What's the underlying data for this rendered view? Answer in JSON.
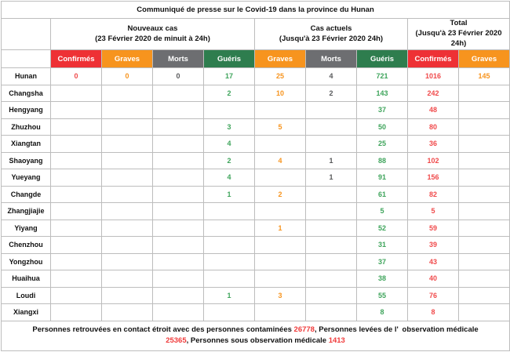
{
  "title": "Communiqué de presse sur le Covid-19 dans la province du Hunan",
  "colors": {
    "header_red": "#ee3135",
    "header_orange": "#f7941e",
    "header_gray": "#6d6e71",
    "header_green": "#2e7d4e",
    "text_red": "#f04a4b",
    "text_orange": "#f7941e",
    "text_gray": "#58595b",
    "text_green": "#3ea45b",
    "border": "#bdbdbd"
  },
  "table": {
    "groups": [
      {
        "line1": "Nouveaux cas",
        "line2": "(23 Février 2020 de minuit à 24h)"
      },
      {
        "line1": "Cas actuels",
        "line2": "(Jusqu'à 23 Février 2020 24h)"
      },
      {
        "line1": "Total",
        "line2": "(Jusqu'à 23 Février 2020 24h)"
      }
    ],
    "columns": [
      {
        "label": "Confirmés",
        "color": "red"
      },
      {
        "label": "Graves",
        "color": "orange"
      },
      {
        "label": "Morts",
        "color": "gray"
      },
      {
        "label": "Guéris",
        "color": "green"
      },
      {
        "label": "Graves",
        "color": "orange"
      },
      {
        "label": "Morts",
        "color": "gray"
      },
      {
        "label": "Guéris",
        "color": "green"
      },
      {
        "label": "Confirmés",
        "color": "red"
      },
      {
        "label": "Graves",
        "color": "orange"
      }
    ],
    "rows": [
      {
        "region": "Hunan",
        "values": [
          "0",
          "0",
          "0",
          "17",
          "25",
          "4",
          "721",
          "1016",
          "145"
        ]
      },
      {
        "region": "Changsha",
        "values": [
          "",
          "",
          "",
          "2",
          "10",
          "2",
          "143",
          "242",
          ""
        ]
      },
      {
        "region": "Hengyang",
        "values": [
          "",
          "",
          "",
          "",
          "",
          "",
          "37",
          "48",
          ""
        ]
      },
      {
        "region": "Zhuzhou",
        "values": [
          "",
          "",
          "",
          "3",
          "5",
          "",
          "50",
          "80",
          ""
        ]
      },
      {
        "region": "Xiangtan",
        "values": [
          "",
          "",
          "",
          "4",
          "",
          "",
          "25",
          "36",
          ""
        ]
      },
      {
        "region": "Shaoyang",
        "values": [
          "",
          "",
          "",
          "2",
          "4",
          "1",
          "88",
          "102",
          ""
        ]
      },
      {
        "region": "Yueyang",
        "values": [
          "",
          "",
          "",
          "4",
          "",
          "1",
          "91",
          "156",
          ""
        ]
      },
      {
        "region": "Changde",
        "values": [
          "",
          "",
          "",
          "1",
          "2",
          "",
          "61",
          "82",
          ""
        ]
      },
      {
        "region": "Zhangjiajie",
        "values": [
          "",
          "",
          "",
          "",
          "",
          "",
          "5",
          "5",
          ""
        ]
      },
      {
        "region": "Yiyang",
        "values": [
          "",
          "",
          "",
          "",
          "1",
          "",
          "52",
          "59",
          ""
        ]
      },
      {
        "region": "Chenzhou",
        "values": [
          "",
          "",
          "",
          "",
          "",
          "",
          "31",
          "39",
          ""
        ]
      },
      {
        "region": "Yongzhou",
        "values": [
          "",
          "",
          "",
          "",
          "",
          "",
          "37",
          "43",
          ""
        ]
      },
      {
        "region": "Huaihua",
        "values": [
          "",
          "",
          "",
          "",
          "",
          "",
          "38",
          "40",
          ""
        ]
      },
      {
        "region": "Loudi",
        "values": [
          "",
          "",
          "",
          "1",
          "3",
          "",
          "55",
          "76",
          ""
        ]
      },
      {
        "region": "Xiangxi",
        "values": [
          "",
          "",
          "",
          "",
          "",
          "",
          "8",
          "8",
          ""
        ]
      }
    ]
  },
  "footer": {
    "part1": "Personnes retrouvées en contact étroit avec des personnes contaminées ",
    "num1": "26778",
    "part2": ", Personnes levées de l' observation médicale ",
    "num2": "25365",
    "part3": ", Personnes sous observation médicale ",
    "num3": "1413"
  }
}
